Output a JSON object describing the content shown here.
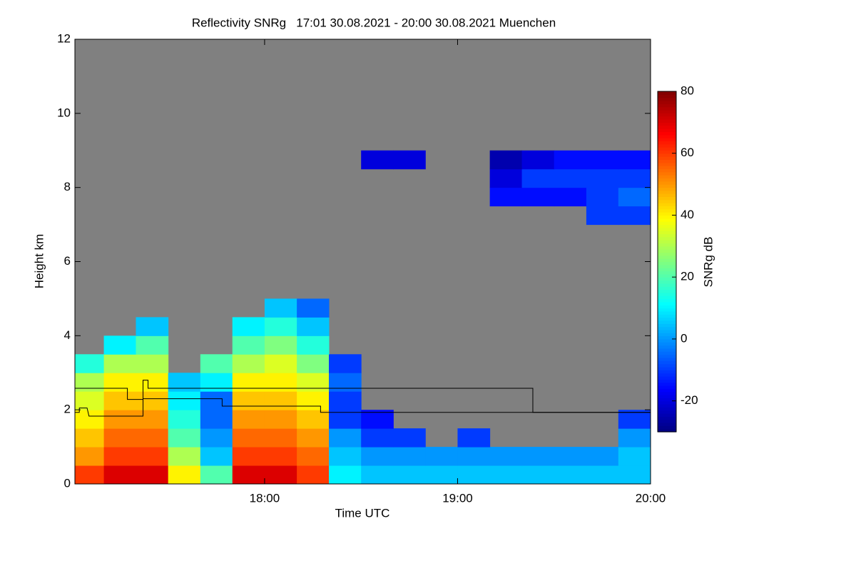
{
  "chart_data": {
    "type": "heatmap",
    "title": "Reflectivity SNRg   17:01 30.08.2021 - 20:00 30.08.2021 Muenchen",
    "xlabel": "Time UTC",
    "ylabel": "Height km",
    "colorbar_label": "SNRg dB",
    "xlim": [
      17.017,
      20.0
    ],
    "xticks": [
      {
        "value": 18,
        "label": "18:00"
      },
      {
        "value": 19,
        "label": "19:00"
      },
      {
        "value": 20,
        "label": "20:00"
      }
    ],
    "ylim": [
      0,
      12
    ],
    "yticks": [
      0,
      2,
      4,
      6,
      8,
      10,
      12
    ],
    "zlim": [
      -30,
      80
    ],
    "zticks": [
      -20,
      0,
      20,
      40,
      60,
      80
    ],
    "background": "#808080",
    "xbins": [
      17.017,
      17.167,
      17.333,
      17.5,
      17.667,
      17.833,
      18.0,
      18.167,
      18.333,
      18.5,
      18.667,
      18.833,
      19.0,
      19.167,
      19.333,
      19.5,
      19.667,
      19.833,
      20.0
    ],
    "ybins": [
      0,
      0.5,
      1,
      1.5,
      2,
      2.5,
      3,
      3.5,
      4,
      4.5,
      5,
      5.5,
      6,
      6.5,
      7,
      7.5,
      8,
      8.5,
      9
    ],
    "values": [
      [
        60,
        70,
        70,
        40,
        20,
        70,
        70,
        60,
        10,
        5,
        5,
        5,
        5,
        5,
        5,
        5,
        5,
        5
      ],
      [
        50,
        60,
        60,
        30,
        5,
        60,
        60,
        55,
        5,
        0,
        0,
        0,
        0,
        0,
        0,
        0,
        0,
        5
      ],
      [
        45,
        55,
        55,
        20,
        0,
        55,
        55,
        50,
        0,
        -10,
        -10,
        null,
        -10,
        null,
        null,
        null,
        null,
        0
      ],
      [
        40,
        50,
        50,
        15,
        -5,
        50,
        50,
        45,
        -10,
        -15,
        null,
        null,
        null,
        null,
        null,
        null,
        null,
        -10
      ],
      [
        35,
        45,
        45,
        10,
        -5,
        45,
        45,
        40,
        -10,
        null,
        null,
        null,
        null,
        null,
        null,
        null,
        null,
        null
      ],
      [
        30,
        40,
        40,
        5,
        10,
        40,
        40,
        35,
        -5,
        null,
        null,
        null,
        null,
        null,
        null,
        null,
        null,
        null
      ],
      [
        15,
        30,
        30,
        null,
        20,
        30,
        35,
        25,
        -10,
        null,
        null,
        null,
        null,
        null,
        null,
        null,
        null,
        null
      ],
      [
        null,
        10,
        20,
        null,
        null,
        20,
        25,
        15,
        null,
        null,
        null,
        null,
        null,
        null,
        null,
        null,
        null,
        null
      ],
      [
        null,
        null,
        5,
        null,
        null,
        10,
        15,
        5,
        null,
        null,
        null,
        null,
        null,
        null,
        null,
        null,
        null,
        null
      ],
      [
        null,
        null,
        null,
        null,
        null,
        null,
        5,
        -5,
        null,
        null,
        null,
        null,
        null,
        null,
        null,
        null,
        null,
        null
      ],
      [
        null,
        null,
        null,
        null,
        null,
        null,
        null,
        null,
        null,
        null,
        null,
        null,
        null,
        null,
        null,
        null,
        null,
        null
      ],
      [
        null,
        null,
        null,
        null,
        null,
        null,
        null,
        null,
        null,
        null,
        null,
        null,
        null,
        null,
        null,
        null,
        null,
        null
      ],
      [
        null,
        null,
        null,
        null,
        null,
        null,
        null,
        null,
        null,
        null,
        null,
        null,
        null,
        null,
        null,
        null,
        null,
        null
      ],
      [
        null,
        null,
        null,
        null,
        null,
        null,
        null,
        null,
        null,
        null,
        null,
        null,
        null,
        null,
        null,
        null,
        null,
        null
      ],
      [
        null,
        null,
        null,
        null,
        null,
        null,
        null,
        null,
        null,
        null,
        null,
        null,
        null,
        null,
        null,
        null,
        -10,
        -10
      ],
      [
        null,
        null,
        null,
        null,
        null,
        null,
        null,
        null,
        null,
        null,
        null,
        null,
        null,
        -15,
        -15,
        -15,
        -10,
        -5
      ],
      [
        null,
        null,
        null,
        null,
        null,
        null,
        null,
        null,
        null,
        null,
        null,
        null,
        null,
        -20,
        -10,
        -10,
        -10,
        -10
      ],
      [
        null,
        null,
        null,
        null,
        null,
        null,
        null,
        null,
        null,
        -20,
        -20,
        null,
        null,
        -25,
        -20,
        -15,
        -15,
        -15
      ]
    ],
    "lines": [
      {
        "color": "#000000",
        "x": [
          17.017,
          17.289,
          17.289,
          17.37,
          17.37,
          17.396,
          17.396,
          19.39,
          19.39,
          20.0
        ],
        "y": [
          2.58,
          2.58,
          2.28,
          2.28,
          2.8,
          2.8,
          2.58,
          2.58,
          1.93,
          1.93
        ]
      },
      {
        "color": "#000000",
        "x": [
          17.017,
          17.04,
          17.04,
          17.08,
          17.09,
          17.37,
          17.37,
          17.78,
          17.78,
          18.29,
          18.29,
          20.0
        ],
        "y": [
          1.93,
          1.93,
          2.05,
          2.05,
          1.83,
          1.83,
          2.3,
          2.3,
          2.1,
          2.1,
          1.93,
          1.93
        ]
      }
    ]
  }
}
